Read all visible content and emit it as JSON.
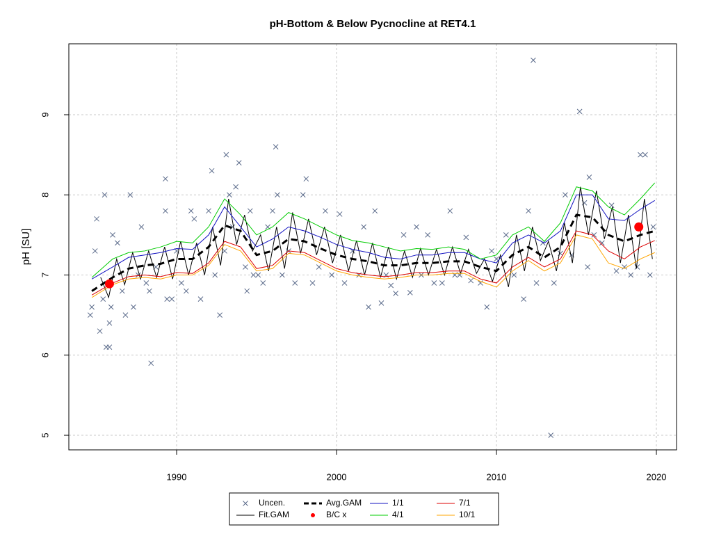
{
  "chart_data": {
    "type": "line",
    "title": "pH-Bottom & Below Pycnocline at RET4.1",
    "y_label": "pH [SU]",
    "xlim": [
      1983.26,
      2021.26
    ],
    "ylim": [
      4.818,
      9.885
    ],
    "xticks": [
      1990,
      2000,
      2010,
      2020
    ],
    "yticks": [
      5,
      6,
      7,
      8,
      9
    ],
    "grid": true,
    "series": [
      {
        "name": "Uncen.",
        "kind": "scatter",
        "color": "#5a6a8a",
        "x": [
          1984.6,
          1984.7,
          1984.9,
          1985,
          1985.2,
          1985.4,
          1985.5,
          1985.6,
          1985.8,
          1985.8,
          1985.9,
          1986,
          1986.3,
          1986.6,
          1986.8,
          1987.1,
          1987.3,
          1987.6,
          1987.8,
          1988.1,
          1988.3,
          1988.4,
          1988.7,
          1989.3,
          1989.3,
          1989.4,
          1989.7,
          1990,
          1990.3,
          1990.6,
          1990.9,
          1991.1,
          1991.5,
          1992,
          1992.2,
          1992.4,
          1992.7,
          1993,
          1993.1,
          1993.3,
          1993.5,
          1993.7,
          1993.9,
          1994.3,
          1994.4,
          1994.6,
          1994.8,
          1995.1,
          1995.4,
          1995.7,
          1996,
          1996.2,
          1996.3,
          1996.6,
          1997,
          1997.4,
          1997.9,
          1998.1,
          1998.5,
          1998.9,
          1999.3,
          1999.7,
          2000.2,
          2000.5,
          2001,
          2001.4,
          2001.7,
          2002,
          2002.4,
          2002.8,
          2003.1,
          2003.4,
          2003.7,
          2004.2,
          2004.6,
          2005,
          2005.3,
          2005.7,
          2006.1,
          2006.6,
          2007.1,
          2007.4,
          2007.7,
          2008.1,
          2008.4,
          2009,
          2009.4,
          2009.7,
          2010,
          2010.6,
          2011.1,
          2011.7,
          2012,
          2012.3,
          2012.5,
          2012.9,
          2013.4,
          2013.6,
          2014,
          2014.3,
          2014.7,
          2015.2,
          2015.5,
          2015.7,
          2015.8,
          2016.1,
          2016.6,
          2017.2,
          2017.5,
          2018,
          2018.4,
          2018.8,
          2019,
          2019.3,
          2019.6,
          2019.8
        ],
        "values": [
          6.5,
          6.6,
          7.3,
          7.7,
          6.3,
          6.7,
          8.0,
          6.1,
          6.1,
          6.4,
          6.6,
          7.5,
          7.4,
          6.8,
          6.5,
          8.0,
          6.6,
          7.0,
          7.6,
          6.9,
          6.8,
          5.9,
          7.1,
          8.2,
          7.8,
          6.7,
          6.7,
          7.3,
          6.9,
          6.8,
          7.8,
          7.7,
          6.7,
          7.8,
          8.3,
          7.0,
          6.5,
          7.3,
          8.5,
          8.0,
          7.6,
          8.1,
          8.4,
          7.1,
          6.8,
          7.8,
          7.0,
          7.0,
          6.9,
          7.6,
          7.8,
          8.6,
          8.0,
          7.0,
          7.3,
          6.9,
          8.0,
          8.2,
          6.9,
          7.1,
          7.8,
          7.0,
          7.76,
          6.9,
          7.3,
          7.0,
          7.6,
          6.6,
          7.8,
          6.65,
          7.0,
          6.87,
          6.77,
          7.5,
          6.78,
          7.6,
          7.0,
          7.5,
          6.9,
          6.9,
          7.8,
          7.0,
          7.0,
          7.47,
          6.93,
          6.9,
          6.6,
          7.3,
          7.2,
          7.5,
          7.0,
          6.7,
          7.8,
          9.68,
          6.9,
          7.4,
          5.0,
          6.9,
          7.27,
          8.0,
          7.25,
          9.04,
          7.9,
          7.1,
          8.22,
          7.5,
          7.4,
          7.87,
          7.05,
          7.1,
          7.0,
          7.1,
          8.5,
          8.5,
          7.0,
          7.6
        ]
      },
      {
        "name": "Fit.GAM",
        "kind": "line",
        "color": "#000000",
        "x": [
          1985.25,
          1985.75,
          1986.25,
          1986.75,
          1987.25,
          1987.75,
          1988.25,
          1988.75,
          1989.25,
          1989.75,
          1990.25,
          1990.75,
          1991.25,
          1991.75,
          1992.25,
          1992.75,
          1993.25,
          1993.75,
          1994.25,
          1994.75,
          1995.25,
          1995.75,
          1996.25,
          1996.75,
          1997.25,
          1997.75,
          1998.25,
          1998.75,
          1999.25,
          1999.75,
          2000.25,
          2000.75,
          2001.25,
          2001.75,
          2002.25,
          2002.75,
          2003.25,
          2003.75,
          2004.25,
          2004.75,
          2005.25,
          2005.75,
          2006.25,
          2006.75,
          2007.25,
          2007.75,
          2008.25,
          2008.75,
          2009.25,
          2009.75,
          2010.25,
          2010.75,
          2011.25,
          2011.75,
          2012.25,
          2012.75,
          2013.25,
          2013.75,
          2014.25,
          2014.75,
          2015.25,
          2015.75,
          2016.25,
          2016.75,
          2017.25,
          2017.75,
          2018.25,
          2018.75,
          2019.25,
          2019.75
        ],
        "values": [
          6.97,
          6.72,
          7.2,
          6.88,
          7.28,
          6.95,
          7.3,
          6.97,
          7.35,
          6.95,
          7.42,
          7.0,
          7.4,
          7.0,
          7.6,
          7.12,
          7.95,
          7.38,
          7.75,
          7.3,
          7.5,
          7.05,
          7.6,
          7.08,
          7.78,
          7.27,
          7.7,
          7.25,
          7.6,
          7.15,
          7.5,
          7.05,
          7.43,
          7.0,
          7.4,
          6.97,
          7.35,
          6.95,
          7.3,
          6.97,
          7.33,
          7.0,
          7.32,
          7.0,
          7.35,
          7.02,
          7.32,
          7.02,
          7.2,
          6.92,
          7.25,
          6.85,
          7.5,
          7.05,
          7.6,
          7.18,
          7.42,
          7.05,
          7.65,
          7.15,
          8.1,
          7.5,
          8.05,
          7.45,
          7.85,
          7.15,
          7.75,
          7.08,
          7.95,
          7.2
        ]
      },
      {
        "name": "Avg.GAM",
        "kind": "line",
        "dash": true,
        "color": "#000000",
        "x": [
          1984.7,
          1986,
          1987,
          1988,
          1989,
          1990,
          1991,
          1992,
          1993,
          1994,
          1995,
          1996,
          1997,
          1998,
          1999,
          2000,
          2001,
          2002,
          2003,
          2004,
          2005,
          2006,
          2007,
          2008,
          2009,
          2010,
          2011,
          2012,
          2013,
          2014,
          2015,
          2016,
          2017,
          2018,
          2019,
          2019.9
        ],
        "values": [
          6.8,
          6.97,
          7.08,
          7.12,
          7.14,
          7.2,
          7.2,
          7.35,
          7.62,
          7.55,
          7.25,
          7.3,
          7.45,
          7.42,
          7.33,
          7.25,
          7.2,
          7.17,
          7.12,
          7.12,
          7.15,
          7.15,
          7.17,
          7.17,
          7.1,
          7.05,
          7.25,
          7.35,
          7.22,
          7.35,
          7.75,
          7.72,
          7.5,
          7.42,
          7.5,
          7.55
        ]
      },
      {
        "name": "B/C x",
        "kind": "points",
        "color": "#ff0000",
        "x": [
          1985.8,
          2018.9
        ],
        "values": [
          6.89,
          7.6
        ]
      },
      {
        "name": "1/1",
        "kind": "line",
        "color": "#1010c0",
        "x": [
          1984.7,
          1986,
          1987,
          1988,
          1989,
          1990,
          1991,
          1992,
          1993,
          1994,
          1995,
          1996,
          1997,
          1998,
          1999,
          2000,
          2001,
          2002,
          2003,
          2004,
          2005,
          2006,
          2007,
          2008,
          2009,
          2010,
          2011,
          2012,
          2013,
          2014,
          2015,
          2016,
          2017,
          2018,
          2019,
          2019.9
        ],
        "values": [
          6.95,
          7.1,
          7.22,
          7.25,
          7.28,
          7.33,
          7.32,
          7.5,
          7.85,
          7.6,
          7.35,
          7.45,
          7.6,
          7.55,
          7.47,
          7.38,
          7.32,
          7.28,
          7.22,
          7.2,
          7.25,
          7.25,
          7.28,
          7.28,
          7.2,
          7.15,
          7.4,
          7.5,
          7.4,
          7.55,
          8.0,
          8.0,
          7.7,
          7.68,
          7.82,
          7.93
        ]
      },
      {
        "name": "4/1",
        "kind": "line",
        "color": "#00cc00",
        "x": [
          1984.7,
          1986,
          1987,
          1988,
          1989,
          1990,
          1991,
          1992,
          1993,
          1994,
          1995,
          1996,
          1997,
          1998,
          1999,
          2000,
          2001,
          2002,
          2003,
          2004,
          2005,
          2006,
          2007,
          2008,
          2009,
          2010,
          2011,
          2012,
          2013,
          2014,
          2015,
          2016,
          2017,
          2018,
          2019,
          2019.9
        ],
        "values": [
          6.97,
          7.2,
          7.28,
          7.3,
          7.35,
          7.42,
          7.4,
          7.6,
          7.95,
          7.75,
          7.5,
          7.6,
          7.78,
          7.7,
          7.6,
          7.5,
          7.43,
          7.4,
          7.35,
          7.3,
          7.33,
          7.32,
          7.35,
          7.32,
          7.2,
          7.25,
          7.5,
          7.6,
          7.42,
          7.65,
          8.1,
          8.05,
          7.85,
          7.75,
          7.95,
          8.15
        ]
      },
      {
        "name": "7/1",
        "kind": "line",
        "color": "#dd0000",
        "x": [
          1984.7,
          1986,
          1987,
          1988,
          1989,
          1990,
          1991,
          1992,
          1993,
          1994,
          1995,
          1996,
          1997,
          1998,
          1999,
          2000,
          2001,
          2002,
          2003,
          2004,
          2005,
          2006,
          2007,
          2008,
          2009,
          2010,
          2011,
          2012,
          2013,
          2014,
          2015,
          2016,
          2017,
          2018,
          2019,
          2019.9
        ],
        "values": [
          6.75,
          6.9,
          6.98,
          7.0,
          6.98,
          7.03,
          7.02,
          7.15,
          7.42,
          7.35,
          7.08,
          7.12,
          7.3,
          7.28,
          7.18,
          7.08,
          7.03,
          7.0,
          6.98,
          7.0,
          7.03,
          7.03,
          7.05,
          7.05,
          6.95,
          6.9,
          7.1,
          7.22,
          7.1,
          7.2,
          7.55,
          7.5,
          7.3,
          7.2,
          7.35,
          7.43
        ]
      },
      {
        "name": "10/1",
        "kind": "line",
        "color": "#ffa500",
        "x": [
          1984.7,
          1986,
          1987,
          1988,
          1989,
          1990,
          1991,
          1992,
          1993,
          1994,
          1995,
          1996,
          1997,
          1998,
          1999,
          2000,
          2001,
          2002,
          2003,
          2004,
          2005,
          2006,
          2007,
          2008,
          2009,
          2010,
          2011,
          2012,
          2013,
          2014,
          2015,
          2016,
          2017,
          2018,
          2019,
          2019.9
        ],
        "values": [
          6.72,
          6.88,
          6.95,
          6.97,
          6.95,
          7.0,
          7.0,
          7.12,
          7.38,
          7.3,
          7.05,
          7.08,
          7.27,
          7.25,
          7.15,
          7.05,
          7.0,
          6.97,
          6.95,
          6.97,
          7.0,
          7.0,
          7.02,
          7.02,
          6.92,
          6.85,
          7.05,
          7.18,
          7.05,
          7.15,
          7.5,
          7.45,
          7.15,
          7.08,
          7.2,
          7.28
        ]
      }
    ]
  }
}
